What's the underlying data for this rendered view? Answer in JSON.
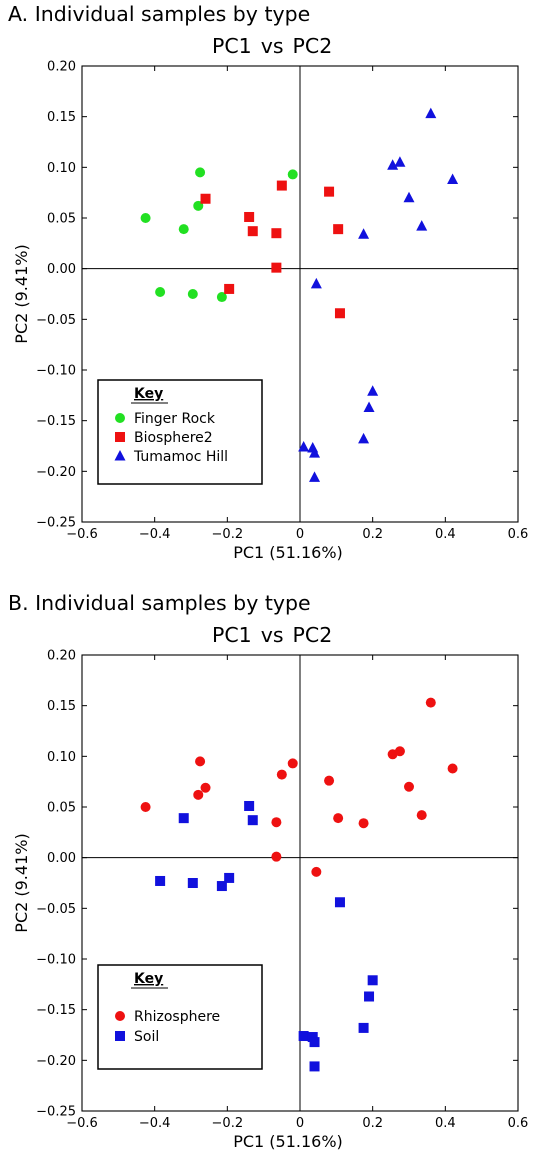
{
  "chart_data": [
    {
      "type": "scatter",
      "panel_title": "A. Individual samples by type",
      "title_left": "PC1",
      "title_mid": "vs",
      "title_right": "PC2",
      "xlabel": "PC1 (51.16%)",
      "ylabel": "PC2 (9.41%)",
      "xlim": [
        -0.6,
        0.6
      ],
      "ylim": [
        -0.25,
        0.2
      ],
      "xticks": [
        -0.6,
        -0.4,
        -0.2,
        0,
        0.2,
        0.4,
        0.6
      ],
      "xtick_labels": [
        "−0.6",
        "−0.4",
        "−0.2",
        "0",
        "0.2",
        "0.4",
        "0.6"
      ],
      "yticks": [
        0.2,
        0.15,
        0.1,
        0.05,
        0,
        -0.05,
        -0.1,
        -0.15,
        -0.2,
        -0.25
      ],
      "ytick_labels": [
        "0.20",
        "0.15",
        "0.10",
        "0.05",
        "0.00",
        "−0.05",
        "−0.10",
        "−0.15",
        "−0.20",
        "−0.25"
      ],
      "grid": false,
      "zero_lines": true,
      "legend": {
        "title": "Key",
        "placement": "bottom-left"
      },
      "series": [
        {
          "name": "Finger Rock",
          "marker": "circle",
          "color": "#22e022",
          "points": [
            [
              -0.425,
              0.05
            ],
            [
              -0.385,
              -0.023
            ],
            [
              -0.32,
              0.039
            ],
            [
              -0.295,
              -0.025
            ],
            [
              -0.28,
              0.062
            ],
            [
              -0.275,
              0.095
            ],
            [
              -0.215,
              -0.028
            ],
            [
              -0.02,
              0.093
            ]
          ]
        },
        {
          "name": "Biosphere2",
          "marker": "square",
          "color": "#ee1111",
          "points": [
            [
              -0.26,
              0.069
            ],
            [
              -0.195,
              -0.02
            ],
            [
              -0.14,
              0.051
            ],
            [
              -0.13,
              0.037
            ],
            [
              -0.065,
              0.035
            ],
            [
              -0.065,
              0.001
            ],
            [
              -0.05,
              0.082
            ],
            [
              0.08,
              0.076
            ],
            [
              0.105,
              0.039
            ],
            [
              0.11,
              -0.044
            ]
          ]
        },
        {
          "name": "Tumamoc Hill",
          "marker": "triangle",
          "color": "#1111dd",
          "points": [
            [
              0.01,
              -0.176
            ],
            [
              0.035,
              -0.177
            ],
            [
              0.04,
              -0.182
            ],
            [
              0.04,
              -0.206
            ],
            [
              0.045,
              -0.015
            ],
            [
              0.175,
              0.034
            ],
            [
              0.175,
              -0.168
            ],
            [
              0.19,
              -0.137
            ],
            [
              0.2,
              -0.121
            ],
            [
              0.255,
              0.102
            ],
            [
              0.275,
              0.105
            ],
            [
              0.3,
              0.07
            ],
            [
              0.335,
              0.042
            ],
            [
              0.36,
              0.153
            ],
            [
              0.42,
              0.088
            ]
          ]
        }
      ]
    },
    {
      "type": "scatter",
      "panel_title": "B. Individual samples by type",
      "title_left": "PC1",
      "title_mid": "vs",
      "title_right": "PC2",
      "xlabel": "PC1 (51.16%)",
      "ylabel": "PC2 (9.41%)",
      "xlim": [
        -0.6,
        0.6
      ],
      "ylim": [
        -0.25,
        0.2
      ],
      "xticks": [
        -0.6,
        -0.4,
        -0.2,
        0,
        0.2,
        0.4,
        0.6
      ],
      "xtick_labels": [
        "−0.6",
        "−0.4",
        "−0.2",
        "0",
        "0.2",
        "0.4",
        "0.6"
      ],
      "yticks": [
        0.2,
        0.15,
        0.1,
        0.05,
        0,
        -0.05,
        -0.1,
        -0.15,
        -0.2,
        -0.25
      ],
      "ytick_labels": [
        "0.20",
        "0.15",
        "0.10",
        "0.05",
        "0.00",
        "−0.05",
        "−0.10",
        "−0.15",
        "−0.20",
        "−0.25"
      ],
      "grid": false,
      "zero_lines": true,
      "legend": {
        "title": "Key",
        "placement": "bottom-left"
      },
      "series": [
        {
          "name": "Rhizosphere",
          "marker": "circle",
          "color": "#ee1111",
          "points": [
            [
              -0.425,
              0.05
            ],
            [
              -0.28,
              0.062
            ],
            [
              -0.275,
              0.095
            ],
            [
              -0.26,
              0.069
            ],
            [
              -0.065,
              0.035
            ],
            [
              -0.065,
              0.001
            ],
            [
              -0.05,
              0.082
            ],
            [
              -0.02,
              0.093
            ],
            [
              0.045,
              -0.014
            ],
            [
              0.08,
              0.076
            ],
            [
              0.105,
              0.039
            ],
            [
              0.175,
              0.034
            ],
            [
              0.255,
              0.102
            ],
            [
              0.275,
              0.105
            ],
            [
              0.3,
              0.07
            ],
            [
              0.335,
              0.042
            ],
            [
              0.36,
              0.153
            ],
            [
              0.42,
              0.088
            ]
          ]
        },
        {
          "name": "Soil",
          "marker": "square",
          "color": "#1111dd",
          "points": [
            [
              -0.385,
              -0.023
            ],
            [
              -0.32,
              0.039
            ],
            [
              -0.295,
              -0.025
            ],
            [
              -0.215,
              -0.028
            ],
            [
              -0.195,
              -0.02
            ],
            [
              -0.14,
              0.051
            ],
            [
              -0.13,
              0.037
            ],
            [
              0.01,
              -0.176
            ],
            [
              0.035,
              -0.177
            ],
            [
              0.04,
              -0.182
            ],
            [
              0.04,
              -0.206
            ],
            [
              0.11,
              -0.044
            ],
            [
              0.175,
              -0.168
            ],
            [
              0.19,
              -0.137
            ],
            [
              0.2,
              -0.121
            ]
          ]
        }
      ]
    }
  ]
}
